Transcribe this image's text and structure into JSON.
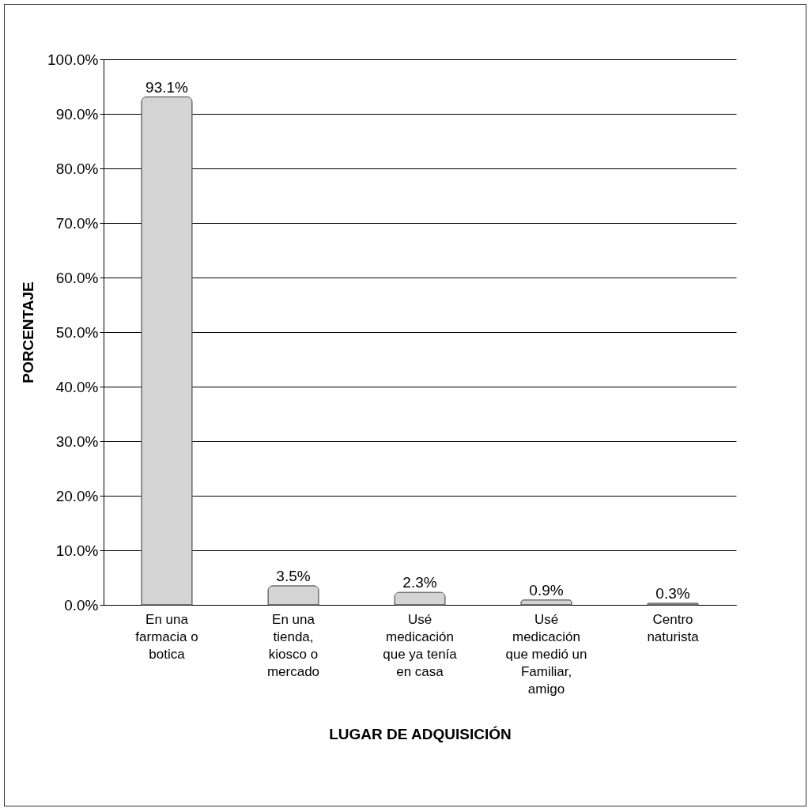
{
  "chart_data": {
    "type": "bar",
    "xlabel": "LUGAR DE ADQUISICIÓN",
    "ylabel": "PORCENTAJE",
    "categories": [
      "En una farmacia o botica",
      "En una tienda, kiosco o mercado",
      "Usé medicación que ya tenía en casa",
      "Usé medicación que medió un Familiar, amigo",
      "Centro naturista"
    ],
    "values": [
      93.1,
      3.5,
      2.3,
      0.9,
      0.3
    ],
    "value_labels": [
      "93.1%",
      "3.5%",
      "2.3%",
      "0.9%",
      "0.3%"
    ],
    "color": "#d4d4d4",
    "ylim": [
      0,
      100
    ],
    "yticks": [
      {
        "value": 0,
        "label": "0.0%"
      },
      {
        "value": 10,
        "label": "10.0%"
      },
      {
        "value": 20,
        "label": "20.0%"
      },
      {
        "value": 30,
        "label": "30.0%"
      },
      {
        "value": 40,
        "label": "40.0%"
      },
      {
        "value": 50,
        "label": "50.0%"
      },
      {
        "value": 60,
        "label": "60.0%"
      },
      {
        "value": 70,
        "label": "70.0%"
      },
      {
        "value": 80,
        "label": "80.0%"
      },
      {
        "value": 90,
        "label": "90.0%"
      },
      {
        "value": 100,
        "label": "100.0%"
      }
    ],
    "grid": "y"
  }
}
